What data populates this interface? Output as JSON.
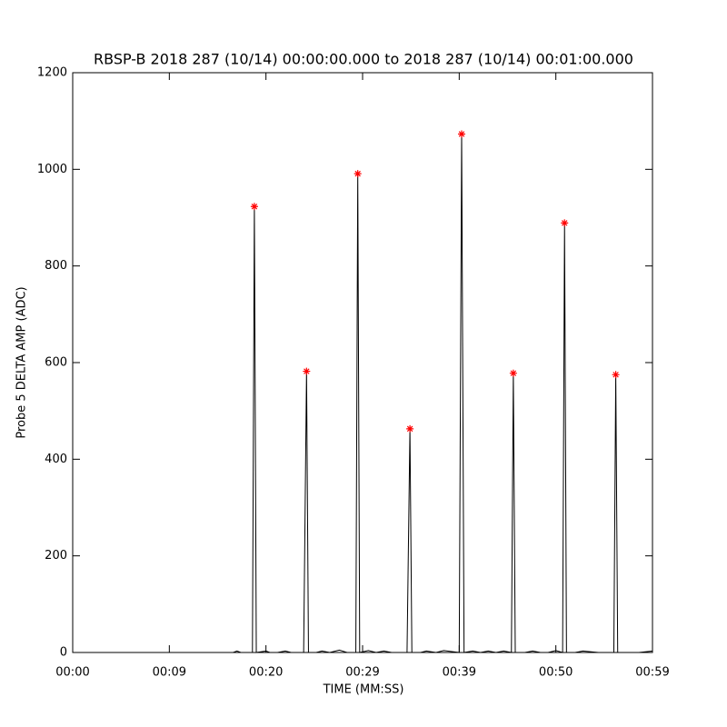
{
  "chart_data": {
    "type": "line",
    "title": "RBSP-B 2018 287 (10/14) 00:00:00.000 to 2018 287 (10/14) 00:01:00.000",
    "x_label": "TIME (MM:SS)",
    "y_label": "Probe 5 DELTA AMP (ADC)",
    "xlim": [
      0,
      60
    ],
    "xticks": [
      {
        "value": 0,
        "label": "00:00"
      },
      {
        "value": 10,
        "label": "00:09"
      },
      {
        "value": 20,
        "label": "00:20"
      },
      {
        "value": 30,
        "label": "00:29"
      },
      {
        "value": 40,
        "label": "00:39"
      },
      {
        "value": 50,
        "label": "00:50"
      },
      {
        "value": 60,
        "label": "00:59"
      }
    ],
    "ylim": [
      0,
      1200
    ],
    "yticks": [
      0,
      200,
      400,
      600,
      800,
      1000,
      1200
    ],
    "series": [
      {
        "color": "#000000",
        "x": [
          0,
          16.6,
          17.0,
          17.4,
          18.6,
          18.8,
          19.0,
          20.0,
          20.4,
          21.2,
          22.0,
          22.6,
          23.9,
          24.2,
          24.4,
          25.2,
          25.8,
          26.6,
          27.6,
          28.4,
          29.3,
          29.5,
          29.7,
          30.6,
          31.4,
          32.2,
          33.0,
          34.6,
          34.9,
          35.1,
          36.0,
          36.6,
          37.6,
          38.4,
          40.0,
          40.25,
          40.5,
          41.4,
          42.2,
          43.0,
          43.8,
          44.6,
          45.4,
          45.6,
          45.8,
          46.8,
          47.6,
          48.4,
          49.2,
          50.0,
          50.7,
          50.9,
          51.1,
          52.0,
          52.8,
          54.4,
          56.0,
          56.2,
          56.4,
          57.4,
          58.6,
          60
        ],
        "values": [
          0,
          0,
          3,
          0,
          0,
          923,
          0,
          3,
          0,
          0,
          3,
          0,
          0,
          582,
          0,
          0,
          3,
          0,
          5,
          0,
          0,
          991,
          0,
          4,
          0,
          3,
          0,
          0,
          463,
          0,
          0,
          3,
          0,
          4,
          0,
          1073,
          0,
          3,
          0,
          3,
          0,
          3,
          0,
          578,
          0,
          0,
          3,
          0,
          0,
          4,
          0,
          889,
          0,
          0,
          3,
          0,
          0,
          575,
          0,
          0,
          0,
          3
        ]
      },
      {
        "color": "#ff0000",
        "marker": "asterisk",
        "x": [
          18.8,
          24.2,
          29.5,
          34.9,
          40.25,
          45.6,
          50.9,
          56.2
        ],
        "values": [
          923,
          582,
          991,
          463,
          1073,
          578,
          889,
          575
        ]
      }
    ]
  }
}
